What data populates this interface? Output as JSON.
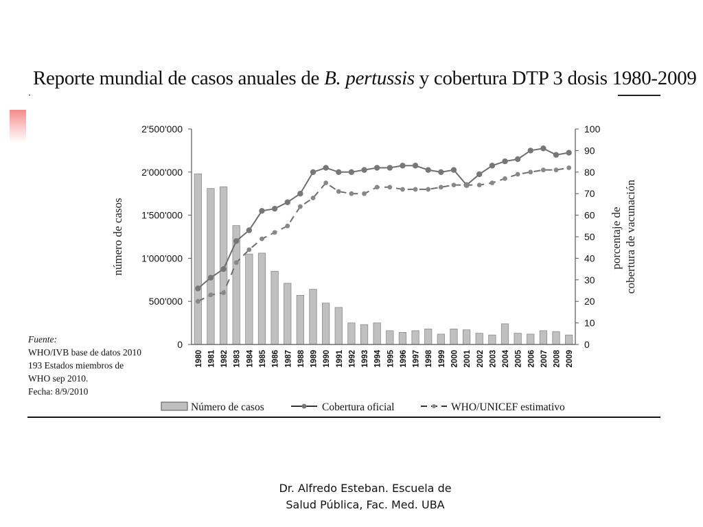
{
  "slide": {
    "title_before": "Reporte mundial de casos anuales de ",
    "title_italic": "B. pertussis",
    "title_after": " y cobertura DTP 3 dosis 1980-2009",
    "source_heading": "Fuente:",
    "source_lines": [
      "WHO/IVB base de datos 2010",
      "193 Estados miembros de",
      "WHO sep 2010.",
      "Fecha: 8/9/2010"
    ],
    "footer_lines": [
      "Dr. Alfredo Esteban. Escuela de",
      "Salud Pública, Fac. Med. UBA"
    ]
  },
  "chart_data": {
    "type": "bar",
    "categories": [
      "1980",
      "1981",
      "1982",
      "1983",
      "1984",
      "1985",
      "1986",
      "1987",
      "1988",
      "1989",
      "1990",
      "1991",
      "1992",
      "1993",
      "1994",
      "1995",
      "1996",
      "1997",
      "1998",
      "1999",
      "2000",
      "2001",
      "2002",
      "2003",
      "2004",
      "2005",
      "2006",
      "2007",
      "2008",
      "2009"
    ],
    "ylabel": "número de casos",
    "ylabel_right_lines": [
      "porcentaje de",
      "cobertura de vacunación"
    ],
    "ylim": [
      0,
      2500000
    ],
    "ylim_right": [
      0,
      100
    ],
    "yticks_left": [
      "0",
      "500'000",
      "1'000'000",
      "1'500'000",
      "2'000'000",
      "2'500'000"
    ],
    "yticks_right": [
      "0",
      "10",
      "20",
      "30",
      "40",
      "50",
      "60",
      "70",
      "80",
      "90",
      "100"
    ],
    "grid": false,
    "legend_position": "bottom",
    "series": [
      {
        "name": "Número de casos",
        "type": "bar",
        "axis": "left",
        "color": "#c0c0c0",
        "values": [
          1980000,
          1810000,
          1830000,
          1380000,
          1050000,
          1060000,
          850000,
          710000,
          570000,
          640000,
          480000,
          430000,
          250000,
          230000,
          250000,
          160000,
          140000,
          160000,
          180000,
          120000,
          180000,
          170000,
          130000,
          110000,
          240000,
          130000,
          120000,
          160000,
          150000,
          110000
        ]
      },
      {
        "name": "Cobertura oficial",
        "type": "line",
        "axis": "right",
        "style": "solid",
        "color": "#777777",
        "values": [
          26,
          31,
          35,
          48,
          53,
          62,
          63,
          66,
          70,
          80,
          82,
          80,
          80,
          81,
          82,
          82,
          83,
          83,
          81,
          80,
          81,
          74,
          79,
          83,
          85,
          86,
          90,
          91,
          88,
          89
        ]
      },
      {
        "name": "WHO/UNICEF estimativo",
        "type": "line",
        "axis": "right",
        "style": "dashed",
        "color": "#888888",
        "values": [
          20,
          23,
          24,
          38,
          44,
          49,
          52,
          55,
          64,
          68,
          75,
          71,
          70,
          70,
          73,
          73,
          72,
          72,
          72,
          73,
          74,
          74,
          74,
          75,
          77,
          79,
          80,
          81,
          81,
          82
        ]
      }
    ]
  }
}
